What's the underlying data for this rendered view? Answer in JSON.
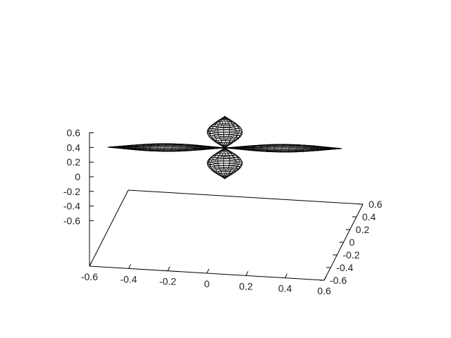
{
  "chart_data": {
    "type": "surface3d",
    "title": "",
    "xlabel": "",
    "ylabel": "",
    "zlabel": "",
    "grid": false,
    "legend": "none",
    "colors": {
      "axis": "#000000",
      "mesh_line": "#000000",
      "mesh_fill": "#ffffff",
      "background": "#ffffff"
    },
    "xlim": [
      -0.6,
      0.6
    ],
    "ylim": [
      -0.6,
      0.6
    ],
    "zlim": [
      -0.6,
      0.6
    ],
    "x_ticks": [
      "-0.6",
      "-0.4",
      "-0.2",
      "0",
      "0.2",
      "0.4",
      "0.6"
    ],
    "y_ticks": [
      "-0.6",
      "-0.4",
      "-0.2",
      "0",
      "0.2",
      "0.4",
      "0.6"
    ],
    "z_ticks": [
      "-0.6",
      "-0.4",
      "-0.2",
      "0",
      "0.2",
      "0.4",
      "0.6"
    ],
    "surface": {
      "shape": "four-lobe orbital",
      "horizontal_lobes": {
        "axis": "x",
        "extent": 0.6
      },
      "vertical_lobes": {
        "axis": "z",
        "extent": 0.2
      }
    }
  }
}
